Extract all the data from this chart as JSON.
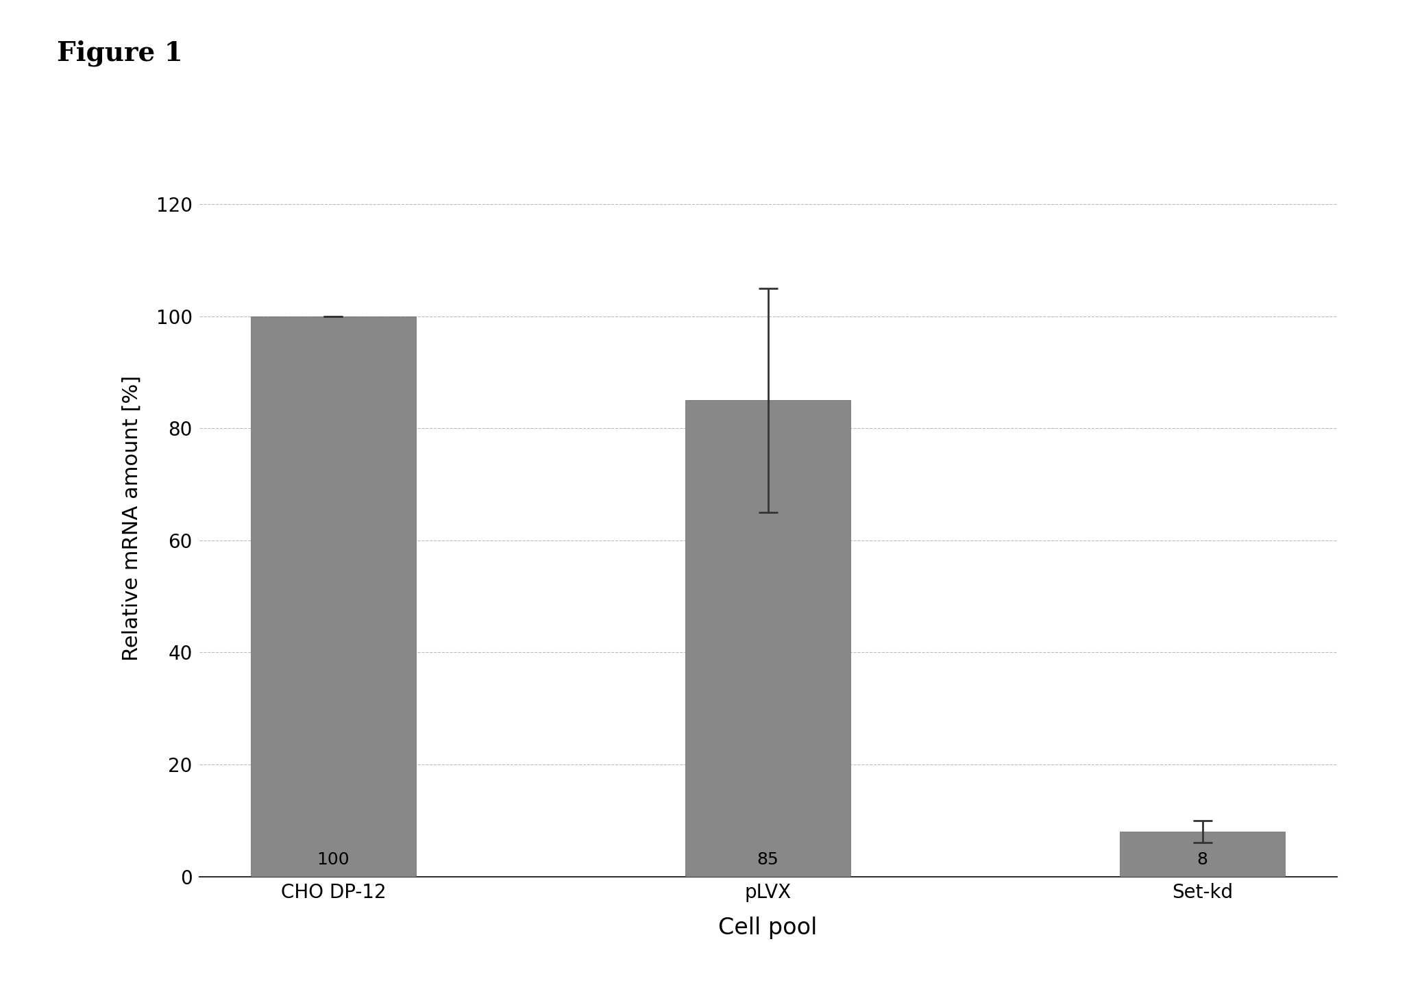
{
  "categories": [
    "CHO DP-12",
    "pLVX",
    "Set-kd"
  ],
  "values": [
    100,
    85,
    8
  ],
  "errors": [
    0,
    20,
    2
  ],
  "bar_color": "#888888",
  "title": "Figure 1",
  "xlabel": "Cell pool",
  "ylabel": "Relative mRNA amount [%]",
  "ylim": [
    0,
    128
  ],
  "yticks": [
    0,
    20,
    40,
    60,
    80,
    100,
    120
  ],
  "bar_labels": [
    "100",
    "85",
    "8"
  ],
  "label_fontsize": 18,
  "axis_label_fontsize": 22,
  "xlabel_fontsize": 24,
  "title_fontsize": 28,
  "tick_fontsize": 20,
  "figure_title": "Figure 1",
  "background_color": "#ffffff",
  "grid_color": "#bbbbbb",
  "bar_width": 0.38,
  "error_capsize": 10,
  "error_color": "#333333"
}
